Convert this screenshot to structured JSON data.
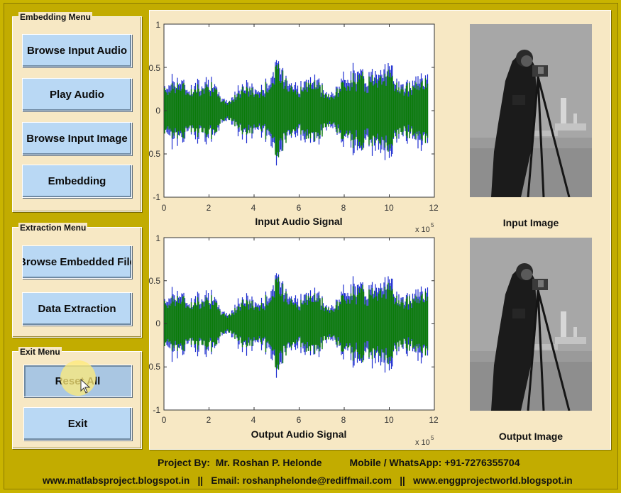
{
  "menus": {
    "embedding": {
      "title": "Embedding Menu",
      "buttons": [
        "Browse Input Audio",
        "Play Audio",
        "Browse Input Image",
        "Embedding"
      ]
    },
    "extraction": {
      "title": "Extraction Menu",
      "buttons": [
        "Browse Embedded File",
        "Data Extraction"
      ]
    },
    "exit": {
      "title": "Exit Menu",
      "buttons": [
        "Reset All",
        "Exit"
      ]
    }
  },
  "plots": {
    "input": {
      "title": "Input Audio Signal",
      "y_ticks": [
        "1",
        "0.5",
        "0",
        "0.5",
        "-1"
      ],
      "x_ticks": [
        "0",
        "2",
        "4",
        "6",
        "8",
        "10",
        "12"
      ],
      "x_multiplier_base": "x 10",
      "x_multiplier_exp": "5"
    },
    "output": {
      "title": "Output Audio Signal",
      "y_ticks": [
        "1",
        "0.5",
        "0",
        "0.5",
        "-1"
      ],
      "x_ticks": [
        "0",
        "2",
        "4",
        "6",
        "8",
        "10",
        "12"
      ],
      "x_multiplier_base": "x 10",
      "x_multiplier_exp": "5"
    }
  },
  "images": {
    "input_caption": "Input Image",
    "output_caption": "Output Image"
  },
  "footer": {
    "line1": "Project By:  Mr. Roshan P. Helonde          Mobile / WhatsApp: +91-7276355704",
    "line2": "www.matlabsproject.blogspot.in   ||   Email: roshanphelonde@rediffmail.com   ||   www.enggprojectworld.blogspot.in"
  },
  "colors": {
    "background": "#c9b400",
    "panel": "#f7e8c4",
    "button": "#b9d8f4",
    "signal_blue": "#1f2fd0",
    "signal_green": "#0a7a0a"
  }
}
